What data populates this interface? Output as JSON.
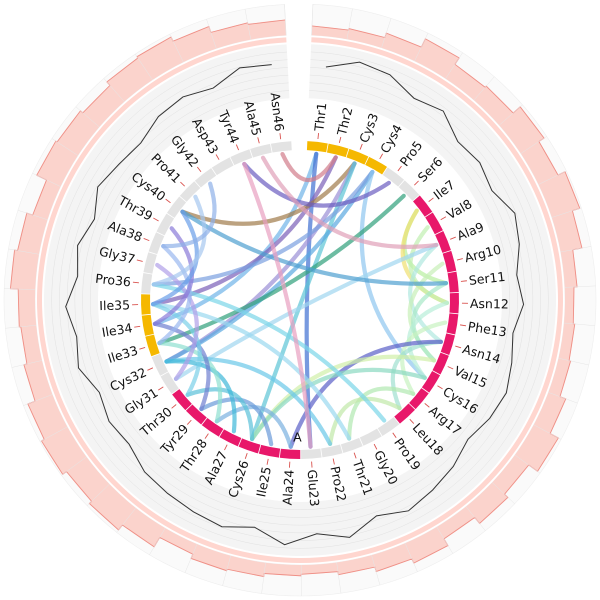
{
  "diagram": {
    "residues": [
      "Thr1",
      "Thr2",
      "Cys3",
      "Cys4",
      "Pro5",
      "Ser6",
      "Ile7",
      "Val8",
      "Ala9",
      "Arg10",
      "Ser11",
      "Asn12",
      "Phe13",
      "Asn14",
      "Val15",
      "Cys16",
      "Arg17",
      "Leu18",
      "Pro19",
      "Gly20",
      "Thr21",
      "Pro22",
      "Glu23",
      "Ala24",
      "Ile25",
      "Cys26",
      "Ala27",
      "Thr28",
      "Tyr29",
      "Thr30",
      "Gly31",
      "Cys32",
      "Ile33",
      "Ile34",
      "Ile35",
      "Pro36",
      "Gly37",
      "Ala38",
      "Thr39",
      "Cys40",
      "Pro41",
      "Gly42",
      "Asp43",
      "Tyr44",
      "Ala45",
      "Asn46"
    ],
    "segment_marker": "A",
    "colors": {
      "strand": "#f5b800",
      "helix": "#e8186a",
      "coil": "#e3e3e3",
      "histogram_fill": "#fbd3cc",
      "histogram_stroke": "#ef8f86",
      "profile_line": "#333333"
    },
    "secondary_structure": [
      "strand",
      "strand",
      "strand",
      "strand",
      "coil",
      "coil",
      "helix",
      "helix",
      "helix",
      "helix",
      "helix",
      "helix",
      "helix",
      "helix",
      "helix",
      "helix",
      "helix",
      "helix",
      "coil",
      "coil",
      "coil",
      "coil",
      "coil",
      "helix",
      "helix",
      "helix",
      "helix",
      "helix",
      "helix",
      "helix",
      "coil",
      "coil",
      "strand",
      "strand",
      "strand",
      "coil",
      "coil",
      "coil",
      "coil",
      "coil",
      "coil",
      "coil",
      "coil",
      "coil",
      "coil",
      "coil"
    ],
    "outer_histogram": [
      0.3,
      0.35,
      0.5,
      0.8,
      0.55,
      0.6,
      0.9,
      0.7,
      0.95,
      0.7,
      0.4,
      0.3,
      0.35,
      0.4,
      0.6,
      0.9,
      0.55,
      0.7,
      0.45,
      0.7,
      0.55,
      0.4,
      0.3,
      0.35,
      0.45,
      0.5,
      0.35,
      0.7,
      0.9,
      0.8,
      0.95,
      0.85,
      0.6,
      0.5,
      0.55,
      0.8,
      0.7,
      0.5,
      0.85,
      0.8,
      0.7,
      0.85,
      0.9,
      0.75,
      0.55,
      0.5
    ],
    "inner_profile": [
      0.6,
      0.8,
      0.75,
      0.55,
      0.65,
      0.4,
      0.45,
      0.35,
      0.55,
      0.45,
      0.3,
      0.4,
      0.25,
      0.35,
      0.45,
      0.4,
      0.3,
      0.45,
      0.55,
      0.65,
      0.5,
      0.75,
      0.6,
      0.8,
      0.55,
      0.7,
      0.65,
      0.6,
      0.55,
      0.4,
      0.45,
      0.35,
      0.55,
      0.45,
      0.6,
      0.4,
      0.5,
      0.35,
      0.55,
      0.45,
      0.4,
      0.55,
      0.6,
      0.5,
      0.7,
      0.65
    ],
    "links": [
      {
        "from": 1,
        "to": 34,
        "color": "#6fb3e8"
      },
      {
        "from": 1,
        "to": 23,
        "color": "#3f6fd2"
      },
      {
        "from": 2,
        "to": 35,
        "color": "#7b5fb8"
      },
      {
        "from": 2,
        "to": 46,
        "color": "#d27c8a"
      },
      {
        "from": 3,
        "to": 40,
        "color": "#a07a4a"
      },
      {
        "from": 3,
        "to": 32,
        "color": "#9a8fd6"
      },
      {
        "from": 3,
        "to": 26,
        "color": "#5cc4d6"
      },
      {
        "from": 4,
        "to": 32,
        "color": "#5aa8e0"
      },
      {
        "from": 4,
        "to": 36,
        "color": "#7aa0e0"
      },
      {
        "from": 4,
        "to": 16,
        "color": "#8ec6f0"
      },
      {
        "from": 5,
        "to": 44,
        "color": "#6b5cc0"
      },
      {
        "from": 6,
        "to": 33,
        "color": "#2fa07a"
      },
      {
        "from": 7,
        "to": 11,
        "color": "#b8f0a0"
      },
      {
        "from": 7,
        "to": 12,
        "color": "#f0e070"
      },
      {
        "from": 8,
        "to": 12,
        "color": "#c0f0b0"
      },
      {
        "from": 9,
        "to": 14,
        "color": "#b0e8e0"
      },
      {
        "from": 9,
        "to": 31,
        "color": "#9fd6f0"
      },
      {
        "from": 10,
        "to": 15,
        "color": "#c8f0b8"
      },
      {
        "from": 11,
        "to": 15,
        "color": "#a8e8c8"
      },
      {
        "from": 11,
        "to": 40,
        "color": "#4fa0d0"
      },
      {
        "from": 12,
        "to": 16,
        "color": "#b8eed8"
      },
      {
        "from": 13,
        "to": 17,
        "color": "#c8f2c0"
      },
      {
        "from": 14,
        "to": 18,
        "color": "#a0e0d0"
      },
      {
        "from": 14,
        "to": 24,
        "color": "#5a60c8"
      },
      {
        "from": 15,
        "to": 26,
        "color": "#d0f0a8"
      },
      {
        "from": 16,
        "to": 26,
        "color": "#8ad8c0"
      },
      {
        "from": 17,
        "to": 21,
        "color": "#b0e8b0"
      },
      {
        "from": 18,
        "to": 22,
        "color": "#c0e8a8"
      },
      {
        "from": 19,
        "to": 36,
        "color": "#7ad6e8"
      },
      {
        "from": 21,
        "to": 35,
        "color": "#9ad8f0"
      },
      {
        "from": 22,
        "to": 32,
        "color": "#6ac8e8"
      },
      {
        "from": 23,
        "to": 44,
        "color": "#e8a0c0"
      },
      {
        "from": 24,
        "to": 28,
        "color": "#7ab0e0"
      },
      {
        "from": 25,
        "to": 29,
        "color": "#6a9ad8"
      },
      {
        "from": 26,
        "to": 30,
        "color": "#5ac0d8"
      },
      {
        "from": 27,
        "to": 32,
        "color": "#3fb8d8"
      },
      {
        "from": 28,
        "to": 33,
        "color": "#8fe0d0"
      },
      {
        "from": 29,
        "to": 34,
        "color": "#6f7fd0"
      },
      {
        "from": 30,
        "to": 35,
        "color": "#7ad0e8"
      },
      {
        "from": 31,
        "to": 37,
        "color": "#b0a0e8"
      },
      {
        "from": 33,
        "to": 38,
        "color": "#9ab8f0"
      },
      {
        "from": 34,
        "to": 39,
        "color": "#8a7ad8"
      },
      {
        "from": 35,
        "to": 40,
        "color": "#6a9ee8"
      },
      {
        "from": 36,
        "to": 41,
        "color": "#a6c8f0"
      },
      {
        "from": 38,
        "to": 42,
        "color": "#8fb0e8"
      },
      {
        "from": 45,
        "to": 9,
        "color": "#e0a0b8"
      }
    ]
  }
}
